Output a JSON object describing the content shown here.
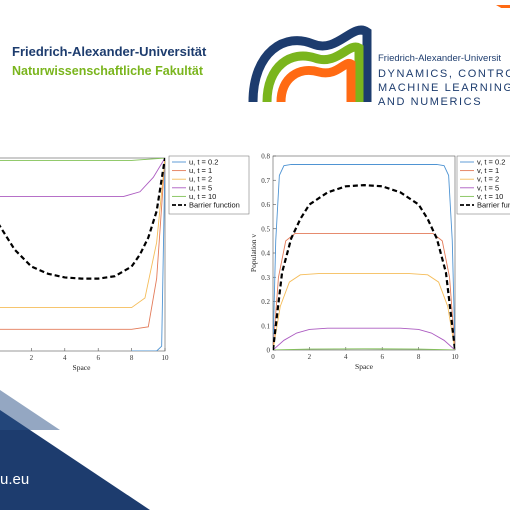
{
  "header": {
    "university": "Friedrich-Alexander-Universität",
    "faculty": "Naturwissenschaftliche Fakultät",
    "dcn_university": "Friedrich-Alexander-Universit",
    "dcn_lines": [
      "DYNAMICS, CONTROL",
      "MACHINE LEARNING",
      "AND NUMERICS"
    ]
  },
  "footer": {
    "url_fragment": "u.eu"
  },
  "colors": {
    "brand_blue": "#1d3c6e",
    "brand_green": "#7ab51d",
    "brand_orange": "#ff6a13"
  },
  "chart_data": [
    {
      "type": "line",
      "title": "",
      "xlabel": "Space",
      "ylabel": "",
      "xlim": [
        0,
        10
      ],
      "ylim": [
        0,
        0.8
      ],
      "x_ticks": [
        "0",
        "2",
        "4",
        "6",
        "8",
        "10"
      ],
      "y_ticks": [],
      "legend_position": "top-right",
      "series": [
        {
          "name": "u, t = 0.2",
          "color": "#4f94d3",
          "style": "solid",
          "x": [
            8.0,
            9.0,
            9.5,
            9.8,
            10
          ],
          "y": [
            0.0,
            0.0,
            0.0,
            0.02,
            0.8
          ]
        },
        {
          "name": "u, t = 1",
          "color": "#e37b59",
          "style": "solid",
          "x": [
            0.0,
            0.5,
            1,
            2,
            4,
            6,
            8,
            9,
            9.5,
            10
          ],
          "y": [
            0.09,
            0.09,
            0.09,
            0.09,
            0.09,
            0.09,
            0.09,
            0.1,
            0.3,
            0.8
          ]
        },
        {
          "name": "u, t = 2",
          "color": "#f5bd5a",
          "style": "solid",
          "x": [
            0.0,
            1,
            2,
            4,
            6,
            8,
            8.8,
            9.5,
            10
          ],
          "y": [
            0.18,
            0.18,
            0.18,
            0.18,
            0.18,
            0.18,
            0.22,
            0.45,
            0.8
          ]
        },
        {
          "name": "u, t = 5",
          "color": "#ac5cc1",
          "style": "solid",
          "x": [
            0.0,
            1,
            2,
            4,
            6,
            7.5,
            8.5,
            9.3,
            10
          ],
          "y": [
            0.64,
            0.64,
            0.64,
            0.64,
            0.64,
            0.64,
            0.66,
            0.72,
            0.8
          ]
        },
        {
          "name": "u, t = 10",
          "color": "#82c257",
          "style": "solid",
          "x": [
            0,
            2,
            4,
            6,
            8,
            10
          ],
          "y": [
            0.79,
            0.79,
            0.79,
            0.79,
            0.79,
            0.8
          ]
        },
        {
          "name": "Barrier function",
          "color": "#000000",
          "style": "dashed",
          "x": [
            0.0,
            1,
            2,
            3,
            4,
            5,
            6,
            7,
            8,
            8.5,
            9,
            9.5,
            10
          ],
          "y": [
            0.53,
            0.42,
            0.35,
            0.32,
            0.305,
            0.3,
            0.3,
            0.31,
            0.35,
            0.4,
            0.47,
            0.58,
            0.8
          ]
        }
      ]
    },
    {
      "type": "line",
      "title": "",
      "xlabel": "Space",
      "ylabel": "Population v",
      "xlim": [
        0,
        10
      ],
      "ylim": [
        0,
        0.8
      ],
      "x_ticks": [
        "0",
        "2",
        "4",
        "6",
        "8",
        "10"
      ],
      "y_ticks": [
        "0",
        "0.1",
        "0.2",
        "0.3",
        "0.4",
        "0.5",
        "0.6",
        "0.7",
        "0.8"
      ],
      "legend_position": "top-right",
      "series": [
        {
          "name": "v, t = 0.2",
          "color": "#4f94d3",
          "style": "solid",
          "x": [
            0,
            0.15,
            0.35,
            0.6,
            1,
            5,
            9,
            9.4,
            9.65,
            9.85,
            10
          ],
          "y": [
            0,
            0.45,
            0.72,
            0.76,
            0.765,
            0.765,
            0.765,
            0.76,
            0.72,
            0.45,
            0
          ]
        },
        {
          "name": "v, t = 1",
          "color": "#e37b59",
          "style": "solid",
          "x": [
            0,
            0.3,
            0.7,
            1.2,
            2,
            5,
            8,
            8.8,
            9.3,
            9.7,
            10
          ],
          "y": [
            0,
            0.3,
            0.45,
            0.48,
            0.48,
            0.48,
            0.48,
            0.48,
            0.45,
            0.3,
            0
          ]
        },
        {
          "name": "v, t = 2",
          "color": "#f5bd5a",
          "style": "solid",
          "x": [
            0,
            0.4,
            0.9,
            1.5,
            2.5,
            5,
            7.5,
            8.5,
            9.1,
            9.6,
            10
          ],
          "y": [
            0,
            0.18,
            0.28,
            0.31,
            0.315,
            0.315,
            0.315,
            0.31,
            0.28,
            0.18,
            0
          ]
        },
        {
          "name": "v, t = 5",
          "color": "#ac5cc1",
          "style": "solid",
          "x": [
            0,
            0.6,
            1.3,
            2,
            3,
            5,
            7,
            8,
            8.7,
            9.4,
            10
          ],
          "y": [
            0,
            0.04,
            0.07,
            0.085,
            0.09,
            0.09,
            0.09,
            0.085,
            0.07,
            0.04,
            0
          ]
        },
        {
          "name": "v, t = 10",
          "color": "#82c257",
          "style": "solid",
          "x": [
            0,
            2,
            5,
            8,
            10
          ],
          "y": [
            0,
            0.004,
            0.005,
            0.004,
            0
          ]
        },
        {
          "name": "Barrier function",
          "color": "#000000",
          "style": "dashed",
          "x": [
            0,
            0.2,
            0.5,
            1,
            1.5,
            2,
            3,
            4,
            5,
            6,
            7,
            8,
            8.5,
            9,
            9.5,
            9.8,
            10
          ],
          "y": [
            0,
            0.13,
            0.32,
            0.46,
            0.54,
            0.6,
            0.65,
            0.675,
            0.68,
            0.675,
            0.65,
            0.6,
            0.54,
            0.46,
            0.32,
            0.13,
            0
          ]
        }
      ]
    }
  ]
}
